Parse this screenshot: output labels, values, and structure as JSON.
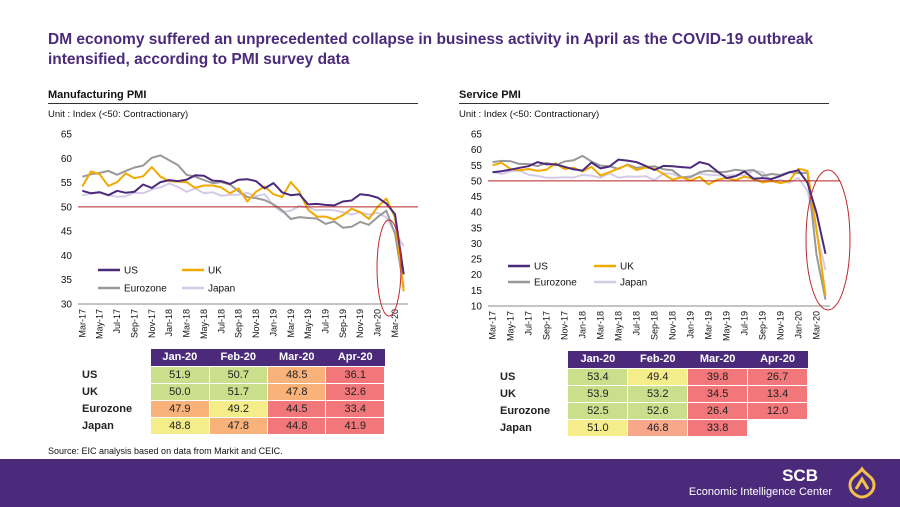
{
  "headline": "DM economy suffered an unprecedented collapse in business activity in April as the COVID-19 outbreak intensified, according to PMI survey data",
  "source": "Source: EIC analysis based on data from Markit and CEIC.",
  "footer": {
    "brand": "SCB",
    "subbrand": "Economic Intelligence Center"
  },
  "colors": {
    "US": "#4b2a7b",
    "UK": "#f2a900",
    "Eurozone": "#999999",
    "Japan": "#d4cbe6",
    "threshold": "#b22222",
    "circle": "#c0282d",
    "header": "#4b2a7b",
    "cell_green": "#c9df8c",
    "cell_yellow": "#f5ec8a",
    "cell_orange": "#f9b27a",
    "cell_red": "#f2777a",
    "cell_lightred": "#f8a88a"
  },
  "table_headers": [
    "Jan-20",
    "Feb-20",
    "Mar-20",
    "Apr-20"
  ],
  "chart_data": [
    {
      "type": "line",
      "title": "Manufacturing PMI",
      "unit": "Unit : Index (<50: Contractionary)",
      "ylim": [
        30,
        65
      ],
      "yticks": [
        30,
        35,
        40,
        45,
        50,
        55,
        60,
        65
      ],
      "threshold": 50,
      "x": [
        "Mar-17",
        "Apr-17",
        "May-17",
        "Jun-17",
        "Jul-17",
        "Aug-17",
        "Sep-17",
        "Oct-17",
        "Nov-17",
        "Dec-17",
        "Jan-18",
        "Feb-18",
        "Mar-18",
        "Apr-18",
        "May-18",
        "Jun-18",
        "Jul-18",
        "Aug-18",
        "Sep-18",
        "Oct-18",
        "Nov-18",
        "Dec-18",
        "Jan-19",
        "Feb-19",
        "Mar-19",
        "Apr-19",
        "May-19",
        "Jun-19",
        "Jul-19",
        "Aug-19",
        "Sep-19",
        "Oct-19",
        "Nov-19",
        "Dec-19",
        "Jan-20",
        "Feb-20",
        "Mar-20",
        "Apr-20"
      ],
      "x_tick_labels": [
        "Mar-17",
        "May-17",
        "Jul-17",
        "Sep-17",
        "Nov-17",
        "Jan-18",
        "Mar-18",
        "May-18",
        "Jul-18",
        "Sep-18",
        "Nov-18",
        "Jan-19",
        "Mar-19",
        "May-19",
        "Jul-19",
        "Sep-19",
        "Nov-19",
        "Jan-20",
        "Mar-20"
      ],
      "legend": [
        "US",
        "UK",
        "Eurozone",
        "Japan"
      ],
      "series": [
        {
          "name": "US",
          "values": [
            53.3,
            52.8,
            53.0,
            52.4,
            53.3,
            52.9,
            53.1,
            54.6,
            53.9,
            55.1,
            55.5,
            55.3,
            55.6,
            56.5,
            56.4,
            55.4,
            55.3,
            54.7,
            55.6,
            55.7,
            55.3,
            53.8,
            54.9,
            53.0,
            52.4,
            52.6,
            50.5,
            50.6,
            50.4,
            50.3,
            51.1,
            51.3,
            52.6,
            52.4,
            51.9,
            50.7,
            48.5,
            36.1
          ]
        },
        {
          "name": "UK",
          "values": [
            54.2,
            57.3,
            56.7,
            54.3,
            55.1,
            56.9,
            55.9,
            56.3,
            58.2,
            56.2,
            55.3,
            55.2,
            55.1,
            53.9,
            54.4,
            54.4,
            54.0,
            52.8,
            53.8,
            51.1,
            53.1,
            54.2,
            52.6,
            52.0,
            55.1,
            53.1,
            49.4,
            48.0,
            48.0,
            47.4,
            48.3,
            49.6,
            48.9,
            47.5,
            50.0,
            51.7,
            47.8,
            32.6
          ]
        },
        {
          "name": "Eurozone",
          "values": [
            56.2,
            56.7,
            57.0,
            57.4,
            56.6,
            57.4,
            58.1,
            58.5,
            60.1,
            60.6,
            59.6,
            58.6,
            56.6,
            56.2,
            55.5,
            54.9,
            55.1,
            54.6,
            53.2,
            52.0,
            51.8,
            51.4,
            50.5,
            49.3,
            47.5,
            47.9,
            47.7,
            47.6,
            46.5,
            47.0,
            45.7,
            45.9,
            46.9,
            46.3,
            47.9,
            49.2,
            44.5,
            33.4
          ]
        },
        {
          "name": "Japan",
          "values": [
            52.4,
            52.7,
            53.1,
            52.4,
            52.1,
            52.2,
            52.9,
            52.8,
            53.6,
            54.0,
            54.8,
            54.1,
            53.1,
            53.8,
            52.8,
            53.0,
            52.3,
            52.5,
            52.5,
            52.9,
            52.2,
            52.6,
            50.3,
            48.9,
            49.2,
            50.2,
            49.8,
            49.3,
            49.4,
            49.3,
            48.9,
            48.4,
            48.9,
            48.4,
            48.8,
            47.8,
            44.8,
            41.9
          ]
        }
      ],
      "table": [
        {
          "label": "US",
          "values": [
            "51.9",
            "50.7",
            "48.5",
            "36.1"
          ]
        },
        {
          "label": "UK",
          "values": [
            "50.0",
            "51.7",
            "47.8",
            "32.6"
          ]
        },
        {
          "label": "Eurozone",
          "values": [
            "47.9",
            "49.2",
            "44.5",
            "33.4"
          ]
        },
        {
          "label": "Japan",
          "values": [
            "48.8",
            "47.8",
            "44.8",
            "41.9"
          ]
        }
      ],
      "table_colors": [
        [
          "cell_green",
          "cell_green",
          "cell_orange",
          "cell_red"
        ],
        [
          "cell_green",
          "cell_green",
          "cell_orange",
          "cell_red"
        ],
        [
          "cell_orange",
          "cell_yellow",
          "cell_red",
          "cell_red"
        ],
        [
          "cell_yellow",
          "cell_orange",
          "cell_red",
          "cell_red"
        ]
      ]
    },
    {
      "type": "line",
      "title": "Service PMI",
      "unit": "Unit : Index (<50: Contractionary)",
      "ylim": [
        10,
        65
      ],
      "yticks": [
        10,
        15,
        20,
        25,
        30,
        35,
        40,
        45,
        50,
        55,
        60,
        65
      ],
      "threshold": 50,
      "x": [
        "Mar-17",
        "Apr-17",
        "May-17",
        "Jun-17",
        "Jul-17",
        "Aug-17",
        "Sep-17",
        "Oct-17",
        "Nov-17",
        "Dec-17",
        "Jan-18",
        "Feb-18",
        "Mar-18",
        "Apr-18",
        "May-18",
        "Jun-18",
        "Jul-18",
        "Aug-18",
        "Sep-18",
        "Oct-18",
        "Nov-18",
        "Dec-18",
        "Jan-19",
        "Feb-19",
        "Mar-19",
        "Apr-19",
        "May-19",
        "Jun-19",
        "Jul-19",
        "Aug-19",
        "Sep-19",
        "Oct-19",
        "Nov-19",
        "Dec-19",
        "Jan-20",
        "Feb-20",
        "Mar-20",
        "Apr-20"
      ],
      "x_tick_labels": [
        "Mar-17",
        "May-17",
        "Jul-17",
        "Sep-17",
        "Nov-17",
        "Jan-18",
        "Mar-18",
        "May-18",
        "Jul-18",
        "Sep-18",
        "Nov-18",
        "Jan-19",
        "Mar-19",
        "May-19",
        "Jul-19",
        "Sep-19",
        "Nov-19",
        "Jan-20",
        "Mar-20"
      ],
      "legend": [
        "US",
        "UK",
        "Eurozone",
        "Japan"
      ],
      "series": [
        {
          "name": "US",
          "values": [
            52.8,
            53.1,
            53.6,
            54.2,
            54.7,
            56.0,
            55.3,
            55.3,
            54.5,
            53.7,
            53.3,
            55.9,
            54.0,
            54.6,
            56.8,
            56.5,
            56.0,
            54.8,
            53.5,
            54.8,
            54.7,
            54.4,
            54.2,
            56.0,
            55.3,
            53.0,
            50.9,
            51.5,
            53.0,
            50.7,
            50.9,
            50.6,
            51.6,
            52.8,
            53.4,
            49.4,
            39.8,
            26.7
          ]
        },
        {
          "name": "UK",
          "values": [
            55.0,
            55.8,
            53.8,
            53.4,
            53.8,
            53.2,
            53.6,
            55.6,
            53.8,
            54.2,
            53.0,
            54.5,
            51.7,
            52.8,
            54.0,
            55.1,
            53.5,
            54.3,
            53.9,
            52.2,
            50.4,
            51.2,
            50.1,
            51.3,
            48.9,
            50.4,
            51.0,
            50.2,
            51.4,
            50.6,
            49.5,
            50.0,
            49.3,
            50.0,
            53.9,
            53.2,
            34.5,
            13.4
          ]
        },
        {
          "name": "Eurozone",
          "values": [
            56.0,
            56.4,
            56.3,
            55.4,
            55.4,
            54.7,
            55.8,
            55.0,
            56.2,
            56.6,
            58.0,
            56.2,
            54.9,
            54.7,
            53.8,
            55.2,
            54.2,
            54.4,
            54.7,
            53.7,
            53.4,
            51.2,
            51.2,
            52.8,
            53.3,
            52.8,
            52.9,
            53.6,
            53.2,
            53.5,
            51.6,
            52.2,
            51.9,
            52.8,
            52.5,
            52.6,
            26.4,
            12.0
          ]
        },
        {
          "name": "Japan",
          "values": [
            52.9,
            52.2,
            53.0,
            53.3,
            52.0,
            51.6,
            51.0,
            51.0,
            51.2,
            51.1,
            51.9,
            51.7,
            51.0,
            52.5,
            51.0,
            51.4,
            51.3,
            51.5,
            50.2,
            52.4,
            52.3,
            51.0,
            51.6,
            52.3,
            52.0,
            51.8,
            51.7,
            51.9,
            51.8,
            53.3,
            52.8,
            49.7,
            50.3,
            49.4,
            51.0,
            46.8,
            33.8,
            21.5
          ]
        }
      ],
      "table": [
        {
          "label": "US",
          "values": [
            "53.4",
            "49.4",
            "39.8",
            "26.7"
          ]
        },
        {
          "label": "UK",
          "values": [
            "53.9",
            "53.2",
            "34.5",
            "13.4"
          ]
        },
        {
          "label": "Eurozone",
          "values": [
            "52.5",
            "52.6",
            "26.4",
            "12.0"
          ]
        },
        {
          "label": "Japan",
          "values": [
            "51.0",
            "46.8",
            "33.8",
            ""
          ]
        }
      ],
      "table_colors": [
        [
          "cell_green",
          "cell_yellow",
          "cell_red",
          "cell_red"
        ],
        [
          "cell_green",
          "cell_green",
          "cell_red",
          "cell_red"
        ],
        [
          "cell_green",
          "cell_green",
          "cell_red",
          "cell_red"
        ],
        [
          "cell_yellow",
          "cell_lightred",
          "cell_red",
          "none"
        ]
      ]
    }
  ]
}
